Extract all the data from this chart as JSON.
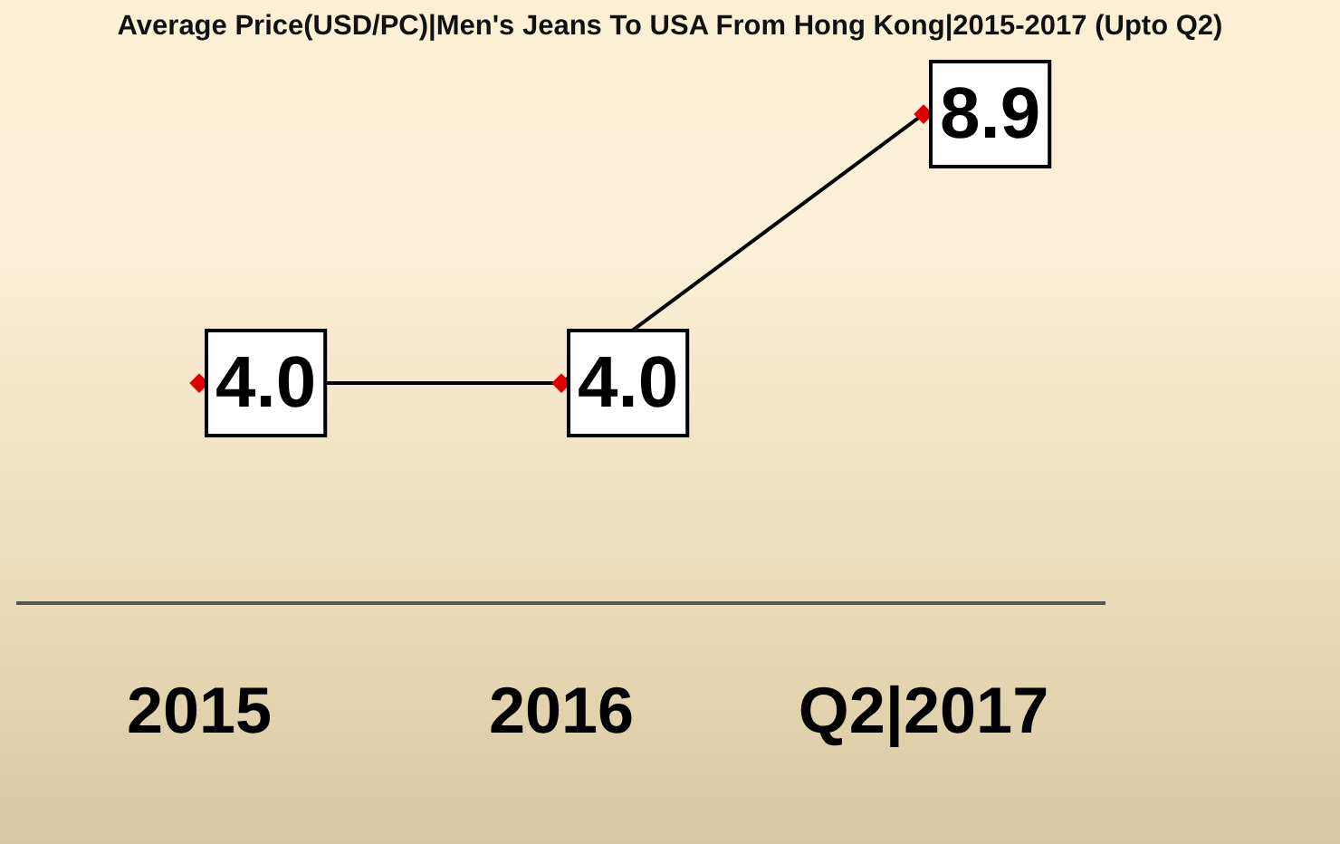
{
  "chart_data": {
    "type": "line",
    "title": "Average Price(USD/PC)|Men's Jeans To USA From Hong Kong|2015-2017 (Upto Q2)",
    "categories": [
      "2015",
      "2016",
      "Q2|2017"
    ],
    "values": [
      4.0,
      4.0,
      8.9
    ],
    "value_labels": [
      "4.0",
      "4.0",
      "8.9"
    ],
    "color": "#000000",
    "marker": "diamond"
  }
}
